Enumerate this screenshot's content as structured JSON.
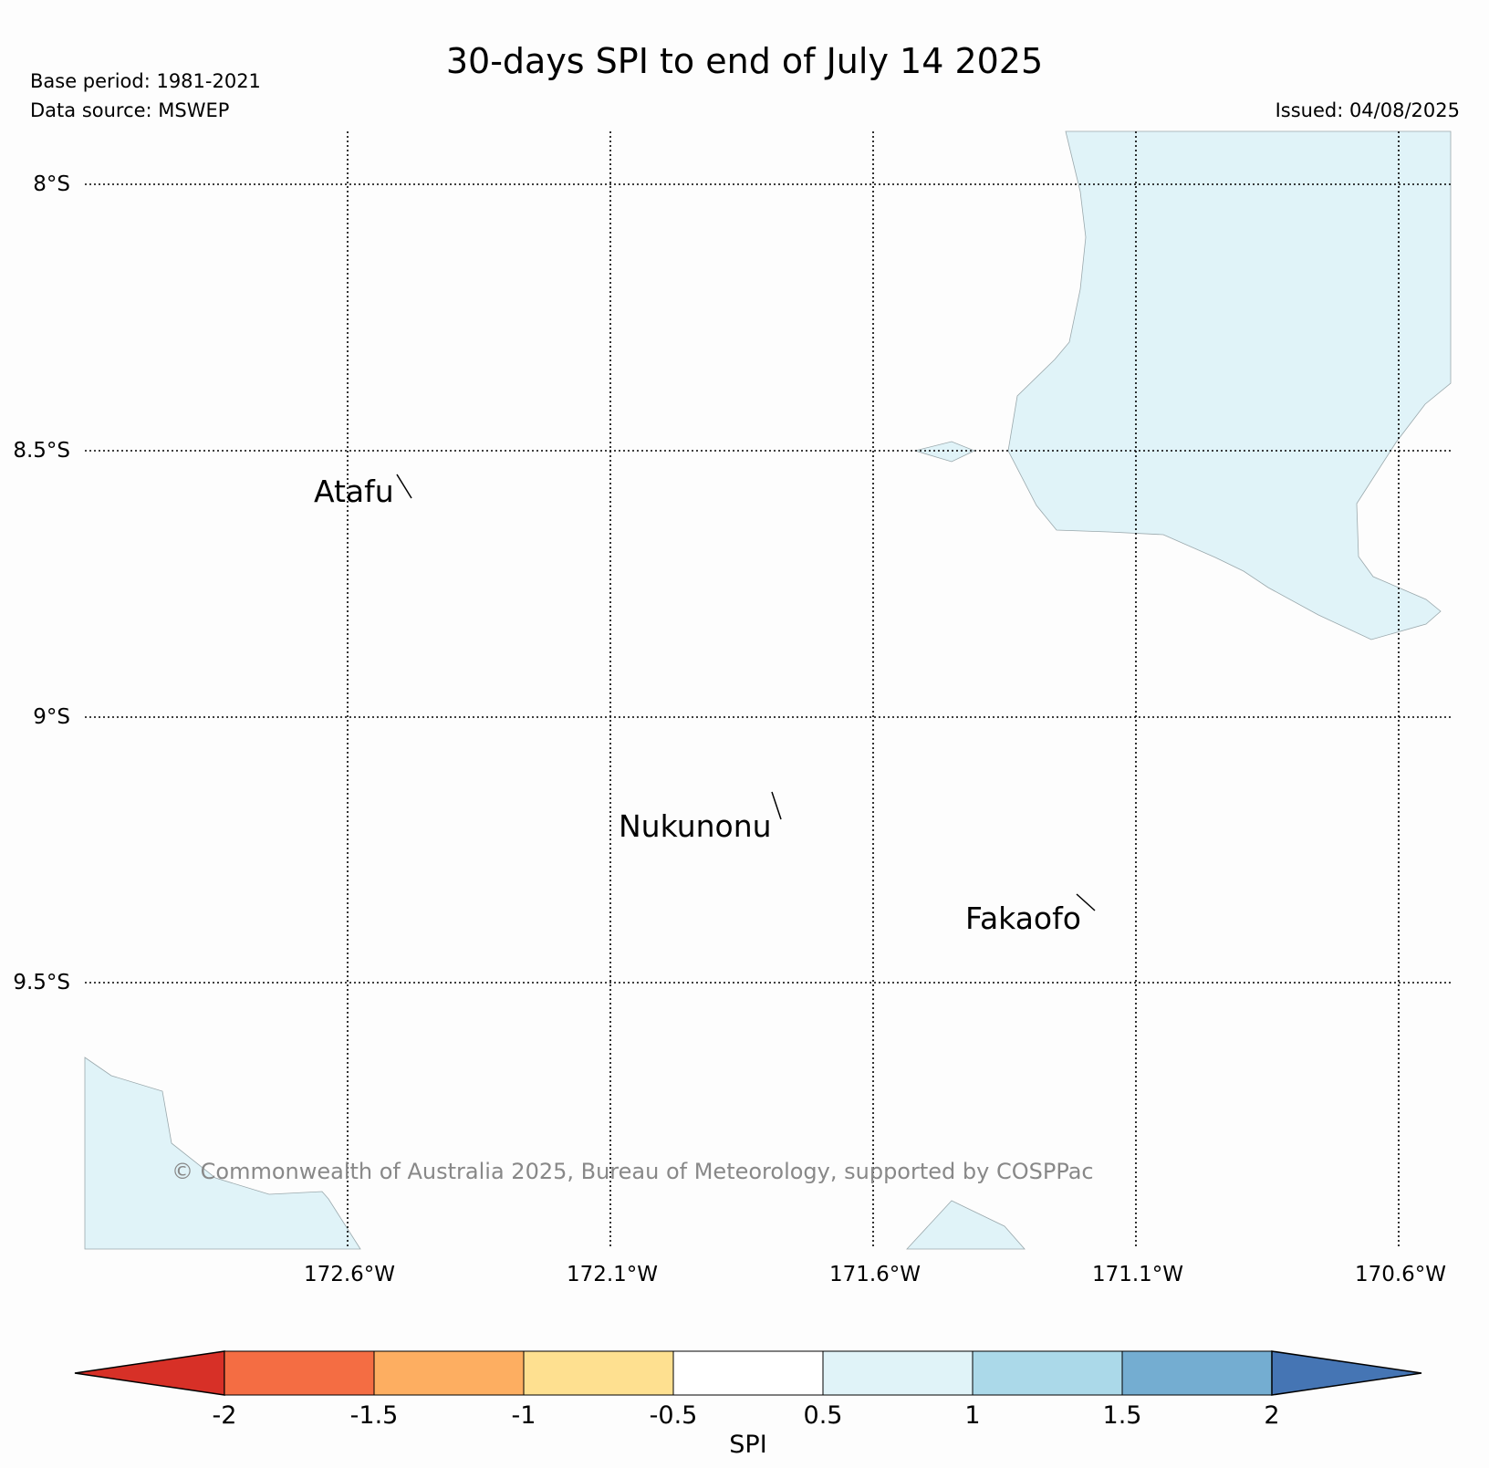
{
  "title": "30-days SPI to end of July 14 2025",
  "base_period": "Base period: 1981-2021",
  "data_source": "Data source: MSWEP",
  "issued": "Issued: 04/08/2025",
  "copyright": "© Commonwealth of Australia 2025, Bureau of Meteorology, supported by COSPPac",
  "lat_labels": [
    "8°S",
    "8.5°S",
    "9°S",
    "9.5°S"
  ],
  "lon_labels": [
    "172.6°W",
    "172.1°W",
    "171.6°W",
    "171.1°W",
    "170.6°W"
  ],
  "places": [
    "Atafu",
    "Nukunonu",
    "Fakaofo"
  ],
  "colorbar": {
    "label": "SPI",
    "ticks": [
      "-2",
      "-1.5",
      "-1",
      "-0.5",
      "0.5",
      "1",
      "1.5",
      "2"
    ],
    "colors": [
      "#d73027",
      "#f46d43",
      "#fdae61",
      "#fee090",
      "#ffffff",
      "#e0f3f8",
      "#abd9e9",
      "#74add1",
      "#4575b4"
    ]
  },
  "colors": {
    "region_fill": "#e0f3f8",
    "background": "#fdfdfd",
    "copyright_text": "#888888"
  }
}
